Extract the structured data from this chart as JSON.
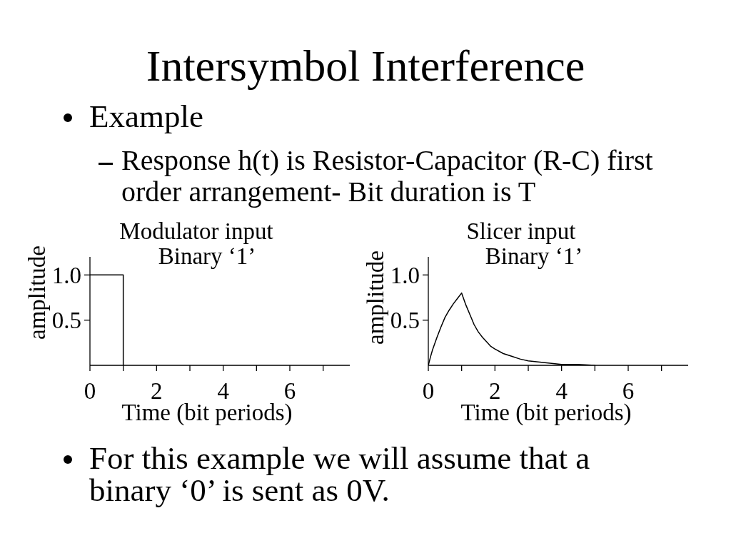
{
  "chart_data": [
    {
      "type": "other",
      "title": "Intersymbol Interference",
      "annotations": [
        "Example",
        "Response h(t) is Resistor-Capacitor (R-C) first order arrangement- Bit duration is T"
      ]
    },
    {
      "type": "line",
      "title": "Modulator input",
      "subtitle": "Binary ‘1’",
      "xlabel": "Time (bit periods)",
      "ylabel": "amplitude",
      "x": [
        0,
        1,
        1
      ],
      "values": [
        1,
        1,
        0
      ],
      "color": "#000000",
      "xlim": [
        0,
        7.8
      ],
      "xticks": [
        0,
        {
          "value": 1,
          "label": null
        },
        2,
        {
          "value": 3,
          "label": null
        },
        4,
        {
          "value": 5,
          "label": null
        },
        6,
        {
          "value": 7,
          "label": null
        }
      ],
      "ylim": [
        0,
        1.2
      ],
      "yticks": [
        0.5,
        {
          "value": 1,
          "label": "1.0"
        }
      ]
    },
    {
      "type": "line",
      "title": "Slicer input",
      "subtitle": "Binary ‘1’",
      "xlabel": "Time (bit periods)",
      "ylabel": "amplitude",
      "x": [
        0,
        0.0625,
        0.125,
        0.25,
        0.375,
        0.5,
        0.625,
        0.75,
        0.875,
        1,
        1.125,
        1.25,
        1.375,
        1.5,
        1.625,
        1.75,
        1.875,
        2,
        2.25,
        2.5,
        2.75,
        3,
        3.5,
        4,
        4.5,
        5
      ],
      "values": [
        0,
        0.09,
        0.17,
        0.3,
        0.42,
        0.53,
        0.61,
        0.68,
        0.74,
        0.8,
        0.67,
        0.56,
        0.45,
        0.37,
        0.31,
        0.26,
        0.21,
        0.18,
        0.13,
        0.1,
        0.07,
        0.05,
        0.03,
        0.01,
        0.01,
        0
      ],
      "color": "#000000",
      "xlim": [
        0,
        7.8
      ],
      "xticks": [
        0,
        {
          "value": 1,
          "label": null
        },
        2,
        {
          "value": 3,
          "label": null
        },
        4,
        {
          "value": 5,
          "label": null
        },
        6,
        {
          "value": 7,
          "label": null
        }
      ],
      "ylim": [
        0,
        1.2
      ],
      "yticks": [
        0.5,
        {
          "value": 1,
          "label": "1.0"
        }
      ]
    },
    {
      "type": "other",
      "annotations": [
        "For this example we will assume that a binary ‘0’ is sent as 0V."
      ]
    }
  ]
}
